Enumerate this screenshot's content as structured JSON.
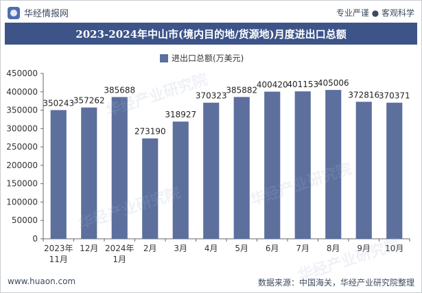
{
  "header": {
    "brand": "华经情报网",
    "slogan": "专业严谨 ● 客观科学",
    "title": "2023-2024年中山市(境内目的地/货源地)月度进出口总额"
  },
  "footer": {
    "site": "www.huaon.com",
    "source": "数据来源：中国海关，华经产业研究院整理"
  },
  "watermark": "华经产业研究院",
  "colors": {
    "bar": "#5c6f9d",
    "title_bg": "#3d5489"
  },
  "chart_data": {
    "type": "bar",
    "title": "",
    "xlabel": "",
    "ylabel": "",
    "legend": {
      "position": "top",
      "label": "进出口总额(万美元)"
    },
    "categories": [
      [
        "2023年",
        "11月"
      ],
      [
        "12月"
      ],
      [
        "2024年",
        "1月"
      ],
      [
        "2月"
      ],
      [
        "3月"
      ],
      [
        "4月"
      ],
      [
        "5月"
      ],
      [
        "6月"
      ],
      [
        "7月"
      ],
      [
        "8月"
      ],
      [
        "9月"
      ],
      [
        "10月"
      ]
    ],
    "series": [
      {
        "name": "进出口总额(万美元)",
        "values": [
          350243,
          357262,
          385688,
          273190,
          318927,
          370323,
          385882,
          400420,
          401153,
          405006,
          372816,
          370371
        ]
      }
    ],
    "ylim": [
      0,
      450000
    ],
    "yticks": [
      0,
      50000,
      100000,
      150000,
      200000,
      250000,
      300000,
      350000,
      400000,
      450000
    ],
    "grid": false
  }
}
